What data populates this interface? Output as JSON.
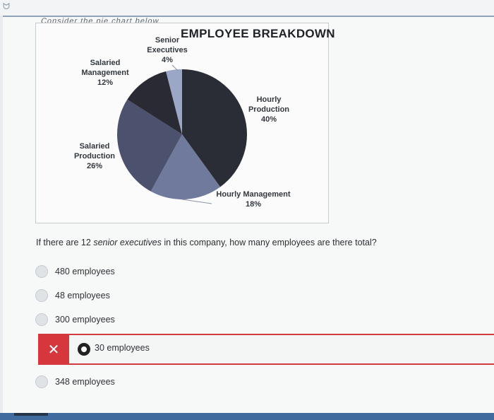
{
  "header": {
    "partial_text": "Consider the pie chart below."
  },
  "chart_data": {
    "type": "pie",
    "title": "EMPLOYEE BREAKDOWN",
    "slices": [
      {
        "label": "Hourly Production",
        "pct_label": "40%",
        "value": 40,
        "color": "#2b2d36"
      },
      {
        "label": "Hourly Management",
        "pct_label": "18%",
        "value": 18,
        "color": "#6f7a9d"
      },
      {
        "label": "Salaried Production",
        "pct_label": "26%",
        "value": 26,
        "color": "#4c526d"
      },
      {
        "label": "Salaried Management",
        "pct_label": "12%",
        "value": 12,
        "color": "#292a33"
      },
      {
        "label": "Senior Executives",
        "pct_label": "4%",
        "value": 4,
        "color": "#9aa7c6"
      }
    ]
  },
  "labels": {
    "senior_line1": "Senior",
    "senior_line2": "Executives",
    "senior_pct": "4%",
    "salmgmt_line1": "Salaried",
    "salmgmt_line2": "Management",
    "salmgmt_pct": "12%",
    "hourlyprod_line1": "Hourly",
    "hourlyprod_line2": "Production",
    "hourlyprod_pct": "40%",
    "salprod_line1": "Salaried",
    "salprod_line2": "Production",
    "salprod_pct": "26%",
    "hourlymgmt_line1": "Hourly Management",
    "hourlymgmt_pct": "18%"
  },
  "question": {
    "prefix": "If there are 12 ",
    "emphasis": "senior executives",
    "suffix": " in this company, how many employees are there total?"
  },
  "options": [
    {
      "label": "480 employees"
    },
    {
      "label": "48 employees"
    },
    {
      "label": "300 employees"
    },
    {
      "label": "30 employees"
    },
    {
      "label": "348 employees"
    }
  ],
  "feedback": {
    "wrong_symbol": "✕"
  }
}
